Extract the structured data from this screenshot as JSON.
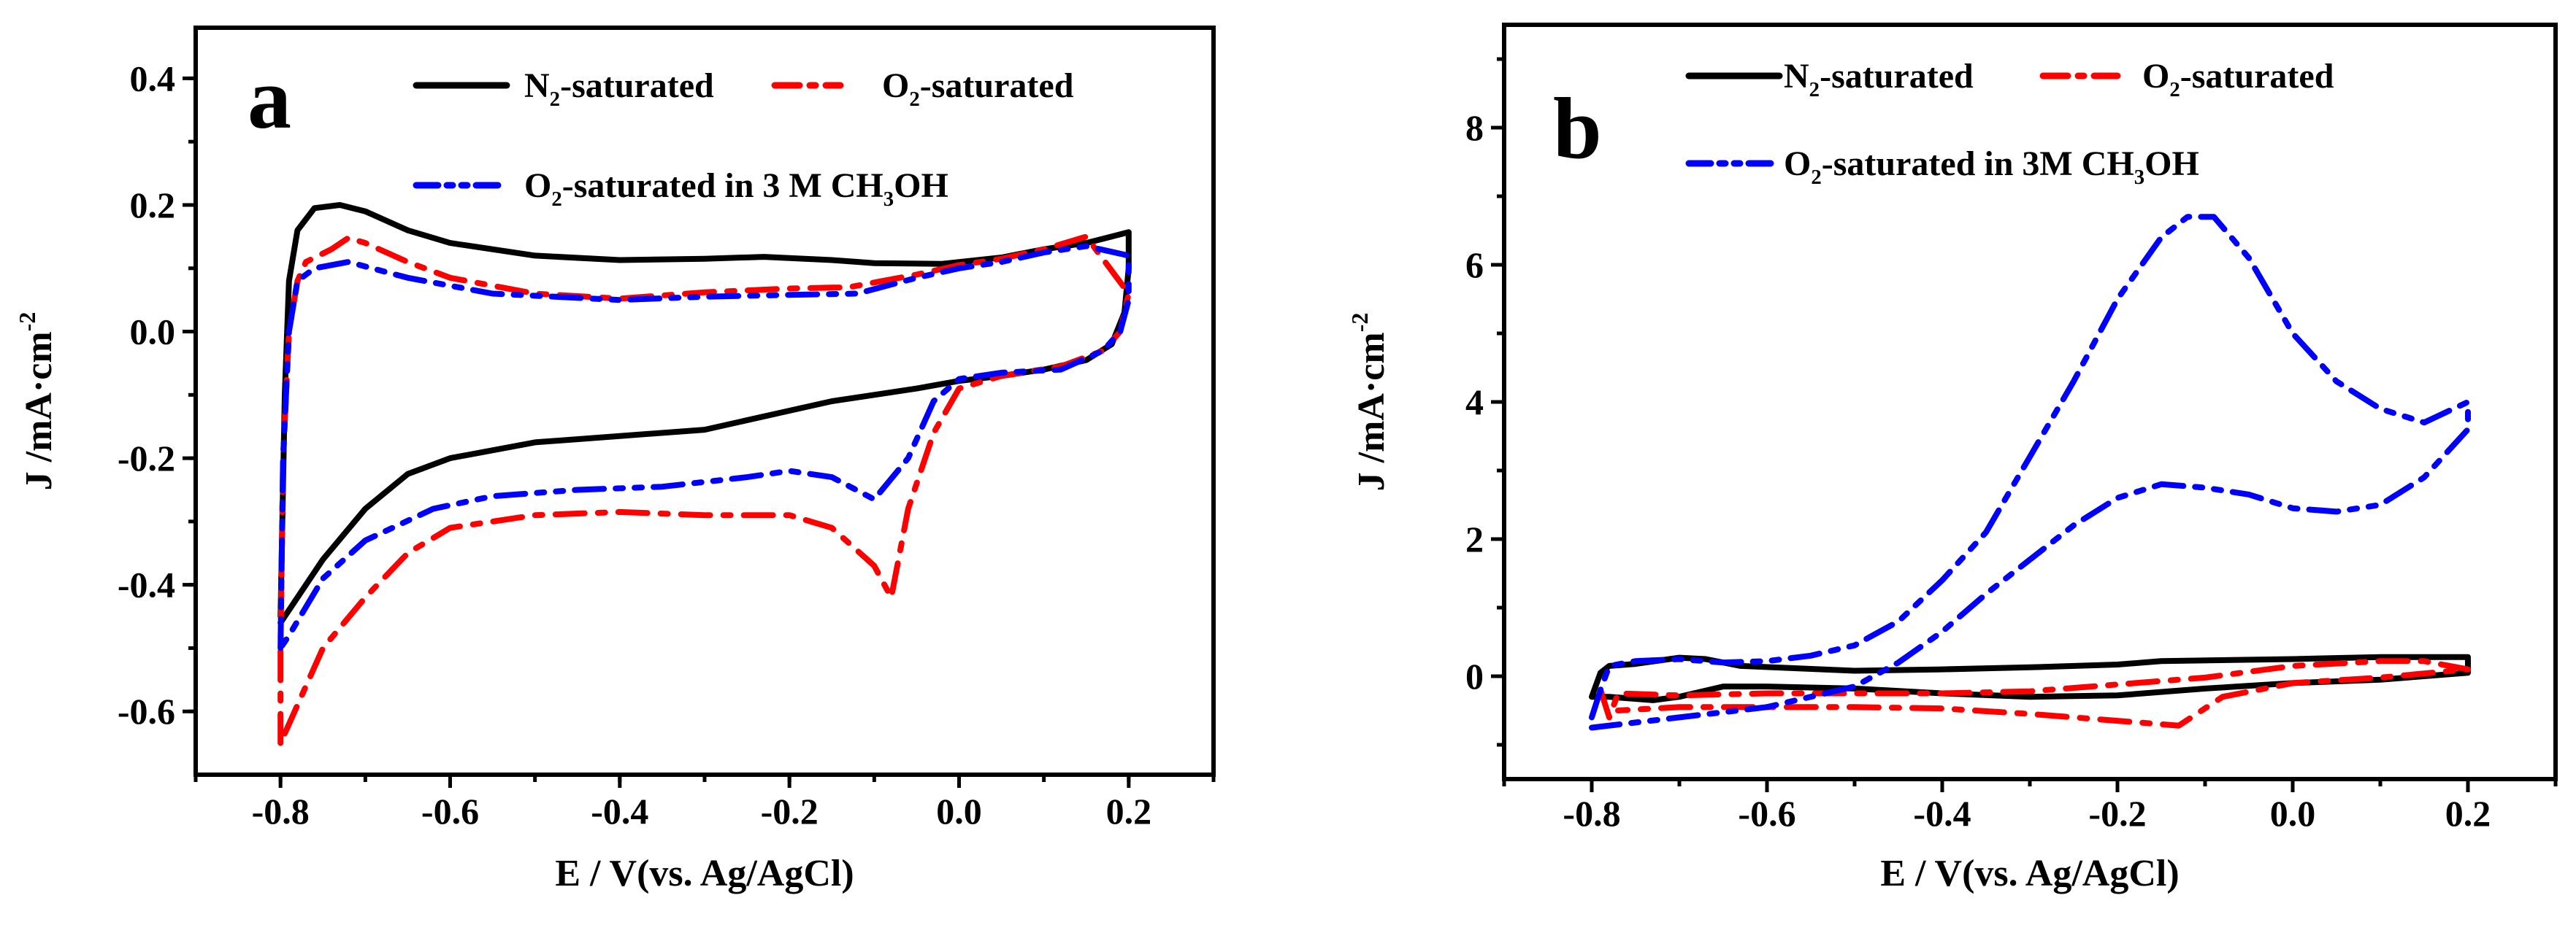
{
  "chart_data": [
    {
      "panel_label": "a",
      "type": "line",
      "xlabel": "E / V(vs. Ag/AgCl)",
      "ylabel": "J /mA·cm^-2",
      "xlim": [
        -0.9,
        0.3
      ],
      "ylim": [
        -0.7,
        0.48
      ],
      "xticks": [
        -0.8,
        -0.6,
        -0.4,
        -0.2,
        0.0,
        0.2
      ],
      "xtick_labels": [
        "-0.8",
        "-0.6",
        "-0.4",
        "-0.2",
        "0.0",
        "0.2"
      ],
      "yticks": [
        -0.6,
        -0.4,
        -0.2,
        0.0,
        0.2,
        0.4
      ],
      "ytick_labels": [
        "-0.6",
        "-0.4",
        "-0.2",
        "0.0",
        "0.2",
        "0.4"
      ],
      "x_minor_step": 0.1,
      "y_minor_step": 0.1,
      "grid": false,
      "legend_placement": "top",
      "series": [
        {
          "name": "N2-saturated",
          "color": "#000000",
          "style": "solid",
          "points": [
            [
              -0.8,
              -0.45
            ],
            [
              -0.795,
              -0.1
            ],
            [
              -0.79,
              0.08
            ],
            [
              -0.78,
              0.16
            ],
            [
              -0.76,
              0.195
            ],
            [
              -0.73,
              0.2
            ],
            [
              -0.7,
              0.19
            ],
            [
              -0.65,
              0.16
            ],
            [
              -0.6,
              0.14
            ],
            [
              -0.5,
              0.12
            ],
            [
              -0.4,
              0.113
            ],
            [
              -0.3,
              0.115
            ],
            [
              -0.23,
              0.118
            ],
            [
              -0.15,
              0.113
            ],
            [
              -0.1,
              0.108
            ],
            [
              -0.02,
              0.107
            ],
            [
              0.05,
              0.117
            ],
            [
              0.1,
              0.13
            ],
            [
              0.15,
              0.14
            ],
            [
              0.2,
              0.157
            ],
            [
              0.2,
              0.1
            ],
            [
              0.195,
              0.03
            ],
            [
              0.18,
              -0.02
            ],
            [
              0.15,
              -0.045
            ],
            [
              0.1,
              -0.06
            ],
            [
              0.05,
              -0.07
            ],
            [
              0.0,
              -0.078
            ],
            [
              -0.05,
              -0.09
            ],
            [
              -0.1,
              -0.1
            ],
            [
              -0.15,
              -0.11
            ],
            [
              -0.2,
              -0.125
            ],
            [
              -0.3,
              -0.155
            ],
            [
              -0.4,
              -0.165
            ],
            [
              -0.5,
              -0.175
            ],
            [
              -0.6,
              -0.2
            ],
            [
              -0.65,
              -0.225
            ],
            [
              -0.7,
              -0.28
            ],
            [
              -0.75,
              -0.36
            ],
            [
              -0.79,
              -0.44
            ],
            [
              -0.8,
              -0.46
            ]
          ]
        },
        {
          "name": "O2-saturated",
          "color": "#ff0000",
          "style": "dashdot",
          "points": [
            [
              -0.8,
              -0.65
            ],
            [
              -0.8,
              -0.5
            ],
            [
              -0.797,
              -0.2
            ],
            [
              -0.79,
              0.0
            ],
            [
              -0.78,
              0.08
            ],
            [
              -0.77,
              0.11
            ],
            [
              -0.74,
              0.13
            ],
            [
              -0.72,
              0.148
            ],
            [
              -0.7,
              0.14
            ],
            [
              -0.65,
              0.11
            ],
            [
              -0.6,
              0.085
            ],
            [
              -0.5,
              0.06
            ],
            [
              -0.4,
              0.052
            ],
            [
              -0.3,
              0.062
            ],
            [
              -0.2,
              0.068
            ],
            [
              -0.13,
              0.07
            ],
            [
              -0.05,
              0.09
            ],
            [
              0.0,
              0.105
            ],
            [
              0.05,
              0.115
            ],
            [
              0.1,
              0.13
            ],
            [
              0.15,
              0.15
            ],
            [
              0.2,
              0.06
            ],
            [
              0.19,
              0.0
            ],
            [
              0.17,
              -0.03
            ],
            [
              0.12,
              -0.055
            ],
            [
              0.05,
              -0.07
            ],
            [
              0.0,
              -0.09
            ],
            [
              -0.03,
              -0.16
            ],
            [
              -0.06,
              -0.28
            ],
            [
              -0.08,
              -0.42
            ],
            [
              -0.1,
              -0.37
            ],
            [
              -0.15,
              -0.31
            ],
            [
              -0.2,
              -0.29
            ],
            [
              -0.3,
              -0.29
            ],
            [
              -0.4,
              -0.285
            ],
            [
              -0.5,
              -0.29
            ],
            [
              -0.6,
              -0.31
            ],
            [
              -0.65,
              -0.35
            ],
            [
              -0.7,
              -0.42
            ],
            [
              -0.75,
              -0.5
            ],
            [
              -0.79,
              -0.62
            ],
            [
              -0.8,
              -0.65
            ]
          ]
        },
        {
          "name": "O2-saturated in 3 M CH3OH",
          "color": "#0000ff",
          "style": "dashdotdot",
          "points": [
            [
              -0.8,
              -0.5
            ],
            [
              -0.797,
              -0.2
            ],
            [
              -0.79,
              0.0
            ],
            [
              -0.78,
              0.08
            ],
            [
              -0.76,
              0.1
            ],
            [
              -0.72,
              0.11
            ],
            [
              -0.65,
              0.085
            ],
            [
              -0.55,
              0.06
            ],
            [
              -0.4,
              0.05
            ],
            [
              -0.3,
              0.055
            ],
            [
              -0.2,
              0.058
            ],
            [
              -0.12,
              0.06
            ],
            [
              -0.05,
              0.085
            ],
            [
              0.0,
              0.1
            ],
            [
              0.05,
              0.11
            ],
            [
              0.1,
              0.125
            ],
            [
              0.15,
              0.135
            ],
            [
              0.2,
              0.12
            ],
            [
              0.2,
              0.05
            ],
            [
              0.19,
              0.0
            ],
            [
              0.17,
              -0.03
            ],
            [
              0.12,
              -0.06
            ],
            [
              0.05,
              -0.065
            ],
            [
              0.0,
              -0.075
            ],
            [
              -0.03,
              -0.11
            ],
            [
              -0.06,
              -0.2
            ],
            [
              -0.1,
              -0.265
            ],
            [
              -0.15,
              -0.23
            ],
            [
              -0.2,
              -0.22
            ],
            [
              -0.25,
              -0.23
            ],
            [
              -0.35,
              -0.245
            ],
            [
              -0.45,
              -0.25
            ],
            [
              -0.55,
              -0.26
            ],
            [
              -0.62,
              -0.28
            ],
            [
              -0.7,
              -0.33
            ],
            [
              -0.75,
              -0.39
            ],
            [
              -0.79,
              -0.48
            ],
            [
              -0.8,
              -0.5
            ]
          ]
        }
      ]
    },
    {
      "panel_label": "b",
      "type": "line",
      "xlabel": "E / V(vs. Ag/AgCl)",
      "ylabel": "J /mA·cm^-2",
      "xlim": [
        -0.9,
        0.3
      ],
      "ylim": [
        -1.5,
        9.5
      ],
      "xticks": [
        -0.8,
        -0.6,
        -0.4,
        -0.2,
        0.0,
        0.2
      ],
      "xtick_labels": [
        "-0.8",
        "-0.6",
        "-0.4",
        "-0.2",
        "0.0",
        "0.2"
      ],
      "yticks": [
        0,
        2,
        4,
        6,
        8
      ],
      "ytick_labels": [
        "0",
        "2",
        "4",
        "6",
        "8"
      ],
      "x_minor_step": 0.1,
      "y_minor_step": 1,
      "grid": false,
      "legend_placement": "top",
      "series": [
        {
          "name": "N2-saturated",
          "color": "#000000",
          "style": "solid",
          "points": [
            [
              -0.8,
              -0.3
            ],
            [
              -0.79,
              0.05
            ],
            [
              -0.78,
              0.15
            ],
            [
              -0.75,
              0.18
            ],
            [
              -0.7,
              0.27
            ],
            [
              -0.67,
              0.25
            ],
            [
              -0.63,
              0.15
            ],
            [
              -0.5,
              0.08
            ],
            [
              -0.4,
              0.1
            ],
            [
              -0.3,
              0.13
            ],
            [
              -0.2,
              0.17
            ],
            [
              -0.15,
              0.22
            ],
            [
              0.0,
              0.25
            ],
            [
              0.1,
              0.28
            ],
            [
              0.2,
              0.28
            ],
            [
              0.2,
              0.05
            ],
            [
              0.1,
              -0.05
            ],
            [
              0.0,
              -0.1
            ],
            [
              -0.1,
              -0.18
            ],
            [
              -0.2,
              -0.28
            ],
            [
              -0.3,
              -0.3
            ],
            [
              -0.4,
              -0.25
            ],
            [
              -0.5,
              -0.18
            ],
            [
              -0.6,
              -0.15
            ],
            [
              -0.65,
              -0.15
            ],
            [
              -0.7,
              -0.3
            ],
            [
              -0.73,
              -0.35
            ],
            [
              -0.78,
              -0.3
            ],
            [
              -0.8,
              -0.3
            ]
          ]
        },
        {
          "name": "O2-saturated",
          "color": "#ff0000",
          "style": "dashdot",
          "points": [
            [
              -0.79,
              -0.2
            ],
            [
              -0.78,
              -0.6
            ],
            [
              -0.77,
              -0.25
            ],
            [
              -0.7,
              -0.28
            ],
            [
              -0.6,
              -0.25
            ],
            [
              -0.4,
              -0.25
            ],
            [
              -0.3,
              -0.22
            ],
            [
              -0.2,
              -0.12
            ],
            [
              -0.1,
              -0.02
            ],
            [
              0.0,
              0.15
            ],
            [
              0.1,
              0.22
            ],
            [
              0.15,
              0.22
            ],
            [
              0.2,
              0.1
            ],
            [
              0.1,
              -0.02
            ],
            [
              0.0,
              -0.1
            ],
            [
              -0.08,
              -0.3
            ],
            [
              -0.13,
              -0.72
            ],
            [
              -0.2,
              -0.65
            ],
            [
              -0.3,
              -0.55
            ],
            [
              -0.4,
              -0.47
            ],
            [
              -0.5,
              -0.45
            ],
            [
              -0.6,
              -0.45
            ],
            [
              -0.7,
              -0.45
            ],
            [
              -0.77,
              -0.5
            ]
          ]
        },
        {
          "name": "O2-saturated in 3M CH3OH",
          "color": "#0000ff",
          "style": "dashdotdot",
          "points": [
            [
              -0.8,
              -0.6
            ],
            [
              -0.79,
              -0.2
            ],
            [
              -0.78,
              0.15
            ],
            [
              -0.75,
              0.22
            ],
            [
              -0.7,
              0.25
            ],
            [
              -0.65,
              0.2
            ],
            [
              -0.6,
              0.22
            ],
            [
              -0.55,
              0.3
            ],
            [
              -0.5,
              0.45
            ],
            [
              -0.45,
              0.8
            ],
            [
              -0.4,
              1.4
            ],
            [
              -0.35,
              2.1
            ],
            [
              -0.3,
              3.2
            ],
            [
              -0.25,
              4.3
            ],
            [
              -0.2,
              5.5
            ],
            [
              -0.15,
              6.4
            ],
            [
              -0.12,
              6.7
            ],
            [
              -0.09,
              6.7
            ],
            [
              -0.05,
              6.1
            ],
            [
              0.0,
              5.0
            ],
            [
              0.05,
              4.3
            ],
            [
              0.1,
              3.9
            ],
            [
              0.15,
              3.7
            ],
            [
              0.2,
              4.0
            ],
            [
              0.2,
              3.6
            ],
            [
              0.15,
              2.9
            ],
            [
              0.1,
              2.5
            ],
            [
              0.05,
              2.4
            ],
            [
              0.0,
              2.45
            ],
            [
              -0.05,
              2.65
            ],
            [
              -0.1,
              2.75
            ],
            [
              -0.15,
              2.8
            ],
            [
              -0.2,
              2.6
            ],
            [
              -0.25,
              2.2
            ],
            [
              -0.3,
              1.7
            ],
            [
              -0.35,
              1.2
            ],
            [
              -0.4,
              0.65
            ],
            [
              -0.45,
              0.2
            ],
            [
              -0.5,
              -0.15
            ],
            [
              -0.6,
              -0.45
            ],
            [
              -0.7,
              -0.6
            ],
            [
              -0.8,
              -0.75
            ]
          ]
        }
      ]
    }
  ]
}
